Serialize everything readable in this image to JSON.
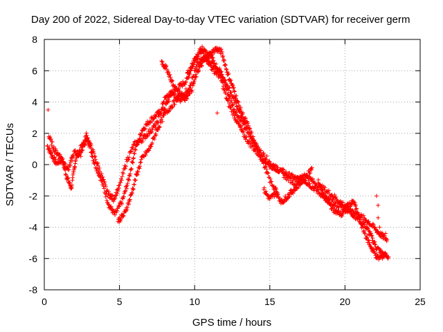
{
  "chart_data": {
    "type": "scatter",
    "title": "Day 200 of 2022, Sidereal Day-to-day VTEC variation (SDTVAR) for receiver germ",
    "xlabel": "GPS time / hours",
    "ylabel": "SDTVAR / TECUs",
    "xlim": [
      0,
      25
    ],
    "ylim": [
      -8,
      8
    ],
    "x_ticks": [
      0,
      5,
      10,
      15,
      20,
      25
    ],
    "y_ticks": [
      -8,
      -6,
      -4,
      -2,
      0,
      2,
      4,
      6,
      8
    ],
    "x_tick_labels": [
      "0",
      "5",
      "10",
      "15",
      "20",
      "25"
    ],
    "y_tick_labels": [
      "-8",
      "-6",
      "-4",
      "-2",
      "0",
      "2",
      "4",
      "6",
      "8"
    ],
    "grid": true,
    "marker": "+",
    "series": [
      {
        "name": "SDTVAR",
        "color": "#ff0000",
        "tracks": [
          {
            "x": [
              0.2,
              0.5,
              0.8,
              1.2,
              1.5,
              1.8,
              2.1,
              2.5,
              2.9,
              3.3,
              3.8,
              4.3,
              4.7,
              5.2,
              5.6,
              6.0,
              6.5,
              7.0,
              7.5,
              8.0,
              8.5,
              9.0,
              9.5,
              10.0,
              10.4,
              10.8,
              11.2,
              11.7,
              12.2,
              12.7,
              13.2,
              13.7,
              14.2,
              14.7,
              15.2,
              15.8,
              16.3,
              16.8,
              17.3,
              17.8,
              18.3,
              18.8,
              19.3,
              19.8,
              20.3,
              20.8,
              21.3,
              21.7,
              22.1,
              22.5,
              22.9
            ],
            "y": [
              1.2,
              0.6,
              0.1,
              0.3,
              -0.8,
              -1.5,
              0.4,
              1.2,
              1.6,
              0.2,
              -1.0,
              -2.6,
              -3.2,
              -2.3,
              -1.0,
              0.8,
              2.2,
              2.8,
              3.2,
              3.6,
              4.6,
              5.0,
              5.4,
              6.8,
              7.3,
              6.8,
              6.5,
              6.0,
              4.6,
              3.4,
              2.6,
              1.8,
              1.0,
              0.5,
              -0.1,
              -0.4,
              -0.7,
              -0.9,
              -1.0,
              -1.4,
              -1.8,
              -2.2,
              -2.5,
              -2.7,
              -3.0,
              -3.4,
              -3.8,
              -4.5,
              -5.3,
              -5.7,
              -5.9
            ]
          },
          {
            "x": [
              0.3,
              0.7,
              1.1,
              1.6,
              2.0,
              2.4,
              2.8,
              3.2,
              3.7,
              4.2,
              4.6,
              5.0,
              5.5,
              6.0,
              6.5,
              7.0,
              7.5,
              8.0,
              8.5,
              9.0,
              9.6,
              10.2,
              10.7,
              11.2,
              11.7,
              12.2,
              12.7,
              13.2,
              13.7,
              14.3,
              14.9,
              15.5,
              16.1,
              16.7,
              17.3,
              17.9,
              18.5,
              19.1,
              19.7,
              20.3,
              20.9,
              21.5,
              22.0,
              22.4,
              22.8
            ],
            "y": [
              1.8,
              0.9,
              0.5,
              -0.3,
              0.8,
              0.6,
              1.9,
              0.9,
              -0.4,
              -1.8,
              -2.2,
              -1.4,
              0.3,
              1.3,
              1.6,
              2.1,
              2.6,
              4.2,
              4.6,
              4.1,
              4.9,
              6.4,
              6.9,
              6.1,
              5.6,
              4.0,
              3.0,
              2.0,
              1.3,
              0.6,
              0.0,
              -0.3,
              -0.8,
              -1.2,
              -0.6,
              -1.1,
              -1.5,
              -1.9,
              -2.4,
              -2.8,
              -3.2,
              -3.6,
              -4.1,
              -4.5,
              -4.8
            ]
          },
          {
            "x": [
              7.8,
              8.2,
              8.6,
              9.0,
              9.4,
              9.8,
              10.2,
              10.6,
              11.0,
              11.4,
              11.8,
              12.2,
              12.6,
              13.0,
              13.5,
              14.0,
              14.5,
              15.0,
              15.5
            ],
            "y": [
              6.6,
              6.0,
              5.0,
              4.6,
              4.4,
              4.8,
              6.0,
              6.6,
              7.0,
              7.4,
              7.2,
              5.8,
              4.8,
              3.6,
              2.6,
              1.4,
              0.3,
              -1.0,
              -1.8
            ]
          },
          {
            "x": [
              9.5,
              10.0,
              10.5,
              11.0,
              11.5,
              12.0,
              12.5,
              13.0,
              13.5
            ],
            "y": [
              5.8,
              6.6,
              7.4,
              7.0,
              6.2,
              5.4,
              4.4,
              3.4,
              2.4
            ]
          },
          {
            "x": [
              14.6,
              15.0,
              15.4,
              15.8,
              16.2,
              16.6,
              17.0,
              17.4,
              17.8
            ],
            "y": [
              -1.6,
              -2.2,
              -1.8,
              -2.4,
              -2.0,
              -1.6,
              -1.2,
              -0.8,
              -0.2
            ]
          },
          {
            "x": [
              4.9,
              5.3,
              5.7,
              6.1,
              6.5,
              7.0,
              7.5,
              8.0,
              8.5,
              9.0,
              9.5
            ],
            "y": [
              -3.6,
              -3.2,
              -2.2,
              -0.8,
              0.4,
              1.0,
              2.2,
              3.2,
              3.8,
              4.4,
              4.2
            ]
          },
          {
            "x": [
              18.2,
              18.6,
              19.0,
              19.4,
              19.8,
              20.2,
              20.6,
              21.0,
              21.4,
              21.8,
              22.2,
              22.6
            ],
            "y": [
              -1.0,
              -2.0,
              -2.6,
              -3.0,
              -3.2,
              -2.6,
              -2.4,
              -3.6,
              -4.6,
              -5.4,
              -6.0,
              -5.8
            ]
          }
        ],
        "points": [
          {
            "x": 0.25,
            "y": 3.5
          },
          {
            "x": 11.5,
            "y": 3.3
          },
          {
            "x": 22.1,
            "y": -2.0
          },
          {
            "x": 22.2,
            "y": -2.6
          },
          {
            "x": 22.2,
            "y": -3.4
          },
          {
            "x": 22.3,
            "y": -4.0
          },
          {
            "x": 22.7,
            "y": -4.4
          }
        ]
      }
    ]
  }
}
